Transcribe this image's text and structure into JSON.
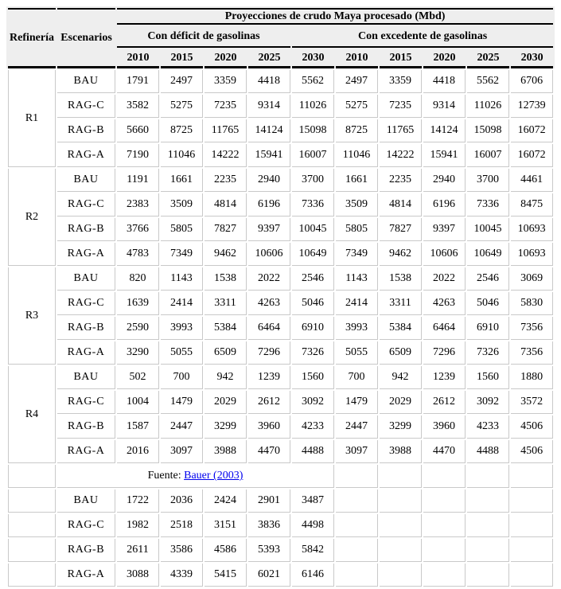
{
  "header": {
    "title": "Proyecciones de crudo Maya procesado (Mbd)",
    "refineria_label": "Refinería",
    "escenarios_label": "Escenarios",
    "group_deficit": "Con déficit de gasolinas",
    "group_excedente": "Con excedente de gasolinas",
    "years": [
      "2010",
      "2015",
      "2020",
      "2025",
      "2030",
      "2010",
      "2015",
      "2020",
      "2025",
      "2030"
    ]
  },
  "body": {
    "refineries": [
      {
        "name": "R1",
        "rows": [
          {
            "scenario": "BAU",
            "values": [
              1791,
              2497,
              3359,
              4418,
              5562,
              2497,
              3359,
              4418,
              5562,
              6706
            ]
          },
          {
            "scenario": "RAG-C",
            "values": [
              3582,
              5275,
              7235,
              9314,
              11026,
              5275,
              7235,
              9314,
              11026,
              12739
            ]
          },
          {
            "scenario": "RAG-B",
            "values": [
              5660,
              8725,
              11765,
              14124,
              15098,
              8725,
              11765,
              14124,
              15098,
              16072
            ]
          },
          {
            "scenario": "RAG-A",
            "values": [
              7190,
              11046,
              14222,
              15941,
              16007,
              11046,
              14222,
              15941,
              16007,
              16072
            ]
          }
        ]
      },
      {
        "name": "R2",
        "rows": [
          {
            "scenario": "BAU",
            "values": [
              1191,
              1661,
              2235,
              2940,
              3700,
              1661,
              2235,
              2940,
              3700,
              4461
            ]
          },
          {
            "scenario": "RAG-C",
            "values": [
              2383,
              3509,
              4814,
              6196,
              7336,
              3509,
              4814,
              6196,
              7336,
              8475
            ]
          },
          {
            "scenario": "RAG-B",
            "values": [
              3766,
              5805,
              7827,
              9397,
              10045,
              5805,
              7827,
              9397,
              10045,
              10693
            ]
          },
          {
            "scenario": "RAG-A",
            "values": [
              4783,
              7349,
              9462,
              10606,
              10649,
              7349,
              9462,
              10606,
              10649,
              10693
            ]
          }
        ]
      },
      {
        "name": "R3",
        "rows": [
          {
            "scenario": "BAU",
            "values": [
              820,
              1143,
              1538,
              2022,
              2546,
              1143,
              1538,
              2022,
              2546,
              3069
            ]
          },
          {
            "scenario": "RAG-C",
            "values": [
              1639,
              2414,
              3311,
              4263,
              5046,
              2414,
              3311,
              4263,
              5046,
              5830
            ]
          },
          {
            "scenario": "RAG-B",
            "values": [
              2590,
              3993,
              5384,
              6464,
              6910,
              3993,
              5384,
              6464,
              6910,
              7356
            ]
          },
          {
            "scenario": "RAG-A",
            "values": [
              3290,
              5055,
              6509,
              7296,
              7326,
              5055,
              6509,
              7296,
              7326,
              7356
            ]
          }
        ]
      },
      {
        "name": "R4",
        "rows": [
          {
            "scenario": "BAU",
            "values": [
              502,
              700,
              942,
              1239,
              1560,
              700,
              942,
              1239,
              1560,
              1880
            ]
          },
          {
            "scenario": "RAG-C",
            "values": [
              1004,
              1479,
              2029,
              2612,
              3092,
              1479,
              2029,
              2612,
              3092,
              3572
            ]
          },
          {
            "scenario": "RAG-B",
            "values": [
              1587,
              2447,
              3299,
              3960,
              4233,
              2447,
              3299,
              3960,
              4233,
              4506
            ]
          },
          {
            "scenario": "RAG-A",
            "values": [
              2016,
              3097,
              3988,
              4470,
              4488,
              3097,
              3988,
              4470,
              4488,
              4506
            ]
          }
        ]
      }
    ],
    "fuente": {
      "prefix": "Fuente:",
      "link_text": "Bauer (2003)"
    },
    "extra_rows": [
      {
        "scenario": "BAU",
        "values": [
          1722,
          2036,
          2424,
          2901,
          3487
        ]
      },
      {
        "scenario": "RAG-C",
        "values": [
          1982,
          2518,
          3151,
          3836,
          4498
        ]
      },
      {
        "scenario": "RAG-B",
        "values": [
          2611,
          3586,
          4586,
          5393,
          5842
        ]
      },
      {
        "scenario": "RAG-A",
        "values": [
          3088,
          4339,
          5415,
          6021,
          6146
        ]
      }
    ]
  },
  "colors": {
    "link_blue": "#0000ee",
    "header_bg": "#eeeeee",
    "grid_gray": "#c9c9c9",
    "rule_black": "#000000"
  }
}
